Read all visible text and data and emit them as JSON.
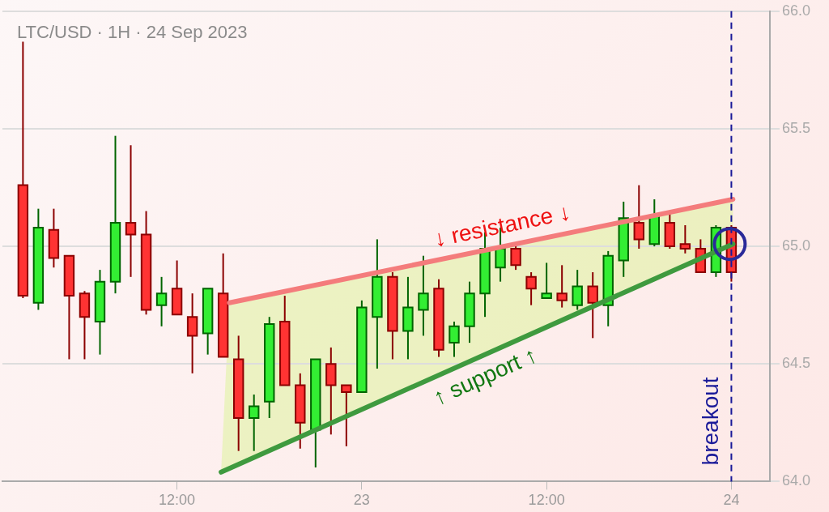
{
  "chart_data": {
    "type": "candlestick",
    "title": "LTC/USD · 1H · 24 Sep 2023",
    "x": [
      "2023-09-22T02:00",
      "2023-09-22T03:00",
      "2023-09-22T04:00",
      "2023-09-22T05:00",
      "2023-09-22T06:00",
      "2023-09-22T07:00",
      "2023-09-22T08:00",
      "2023-09-22T09:00",
      "2023-09-22T10:00",
      "2023-09-22T11:00",
      "2023-09-22T12:00",
      "2023-09-22T13:00",
      "2023-09-22T14:00",
      "2023-09-22T15:00",
      "2023-09-22T16:00",
      "2023-09-22T17:00",
      "2023-09-22T18:00",
      "2023-09-22T19:00",
      "2023-09-22T20:00",
      "2023-09-22T21:00",
      "2023-09-22T22:00",
      "2023-09-22T23:00",
      "2023-09-23T00:00",
      "2023-09-23T01:00",
      "2023-09-23T02:00",
      "2023-09-23T03:00",
      "2023-09-23T04:00",
      "2023-09-23T05:00",
      "2023-09-23T06:00",
      "2023-09-23T07:00",
      "2023-09-23T08:00",
      "2023-09-23T09:00",
      "2023-09-23T10:00",
      "2023-09-23T11:00",
      "2023-09-23T12:00",
      "2023-09-23T13:00",
      "2023-09-23T14:00",
      "2023-09-23T15:00",
      "2023-09-23T16:00",
      "2023-09-23T17:00",
      "2023-09-23T18:00",
      "2023-09-23T19:00",
      "2023-09-23T20:00",
      "2023-09-23T21:00",
      "2023-09-23T22:00",
      "2023-09-23T23:00",
      "2023-09-24T00:00"
    ],
    "ohlc": [
      [
        65.26,
        65.87,
        64.78,
        64.79
      ],
      [
        64.76,
        65.16,
        64.73,
        65.08
      ],
      [
        65.07,
        65.16,
        64.91,
        64.95
      ],
      [
        64.96,
        64.96,
        64.52,
        64.79
      ],
      [
        64.8,
        64.81,
        64.52,
        64.7
      ],
      [
        64.68,
        64.9,
        64.54,
        64.85
      ],
      [
        64.85,
        65.47,
        64.8,
        65.1
      ],
      [
        65.1,
        65.43,
        64.87,
        65.05
      ],
      [
        65.05,
        65.15,
        64.71,
        64.73
      ],
      [
        64.75,
        64.87,
        64.66,
        64.8
      ],
      [
        64.82,
        64.94,
        64.71,
        64.71
      ],
      [
        64.7,
        64.8,
        64.46,
        64.62
      ],
      [
        64.63,
        64.82,
        64.54,
        64.82
      ],
      [
        64.8,
        64.97,
        64.53,
        64.53
      ],
      [
        64.52,
        64.62,
        64.13,
        64.27
      ],
      [
        64.27,
        64.37,
        64.13,
        64.32
      ],
      [
        64.34,
        64.7,
        64.27,
        64.67
      ],
      [
        64.68,
        64.79,
        64.41,
        64.41
      ],
      [
        64.41,
        64.46,
        64.14,
        64.25
      ],
      [
        64.22,
        64.52,
        64.06,
        64.52
      ],
      [
        64.5,
        64.57,
        64.2,
        64.41
      ],
      [
        64.41,
        64.41,
        64.15,
        64.38
      ],
      [
        64.38,
        64.77,
        64.38,
        64.74
      ],
      [
        64.7,
        65.03,
        64.48,
        64.87
      ],
      [
        64.87,
        64.89,
        64.52,
        64.64
      ],
      [
        64.64,
        64.87,
        64.52,
        64.74
      ],
      [
        64.73,
        64.96,
        64.62,
        64.8
      ],
      [
        64.82,
        64.86,
        64.53,
        64.56
      ],
      [
        64.59,
        64.68,
        64.53,
        64.66
      ],
      [
        64.66,
        64.85,
        64.59,
        64.8
      ],
      [
        64.8,
        65.06,
        64.7,
        64.99
      ],
      [
        64.91,
        65.08,
        64.85,
        64.99
      ],
      [
        64.99,
        65.01,
        64.9,
        64.92
      ],
      [
        64.87,
        64.89,
        64.75,
        64.82
      ],
      [
        64.78,
        64.93,
        64.78,
        64.8
      ],
      [
        64.8,
        64.92,
        64.74,
        64.77
      ],
      [
        64.75,
        64.9,
        64.73,
        64.83
      ],
      [
        64.83,
        64.89,
        64.61,
        64.76
      ],
      [
        64.75,
        64.98,
        64.66,
        64.96
      ],
      [
        64.94,
        65.19,
        64.87,
        65.12
      ],
      [
        65.1,
        65.26,
        64.99,
        65.03
      ],
      [
        65.01,
        65.2,
        65.0,
        65.13
      ],
      [
        65.1,
        65.14,
        64.99,
        65.0
      ],
      [
        65.01,
        65.09,
        64.97,
        64.99
      ],
      [
        64.99,
        65.03,
        64.89,
        64.89
      ],
      [
        64.89,
        65.09,
        64.87,
        65.08
      ],
      [
        65.08,
        65.09,
        64.85,
        64.89
      ]
    ],
    "series": [
      {
        "type": "line",
        "name": "↓ resistance ↓",
        "color": "#f47c7c",
        "x": [
          "2023-09-22T15:24",
          "2023-09-24T00:06"
        ],
        "values": [
          64.76,
          65.2
        ]
      },
      {
        "type": "line",
        "name": "↑ support ↑",
        "color": "#3f9a3f",
        "x": [
          "2023-09-22T14:52",
          "2023-09-24T00:06"
        ],
        "values": [
          64.04,
          65.01
        ]
      }
    ],
    "xlim": [
      "2023-09-22T00:40",
      "2023-09-24T02:30"
    ],
    "xticks": [
      {
        "value": "2023-09-22T12:00",
        "label": "12:00"
      },
      {
        "value": "2023-09-23T00:00",
        "label": "23"
      },
      {
        "value": "2023-09-23T12:00",
        "label": "12:00"
      },
      {
        "value": "2023-09-24T00:00",
        "label": "24"
      }
    ],
    "ylim": [
      64,
      66
    ],
    "yticks": [
      {
        "value": 64,
        "label": "64.0"
      },
      {
        "value": 64.5,
        "label": "64.5"
      },
      {
        "value": 65,
        "label": "65.0"
      },
      {
        "value": 65.5,
        "label": "65.5"
      },
      {
        "value": 66,
        "label": "66.0"
      }
    ],
    "grid": "y",
    "legend": false,
    "ref_lines": [
      {
        "axis": "x",
        "value": "2023-09-24T00:00",
        "label": "breakout",
        "color": "#1a1a99",
        "line_style": "dashed"
      }
    ]
  }
}
